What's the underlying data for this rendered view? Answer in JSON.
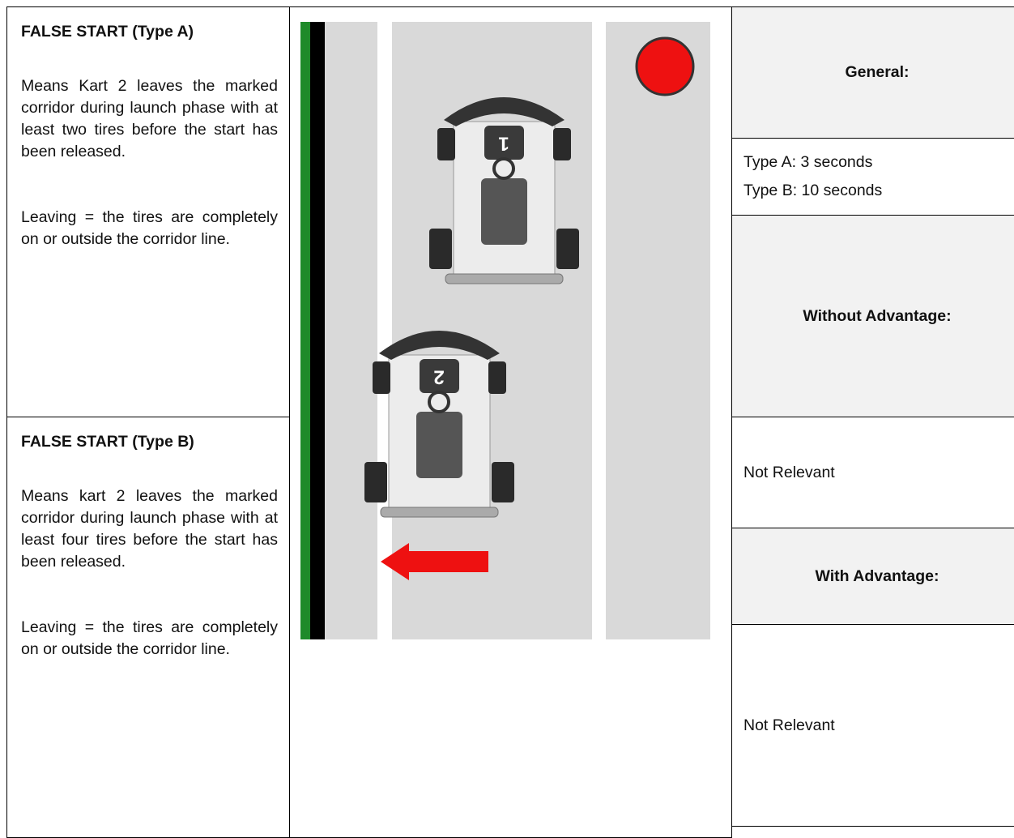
{
  "left": [
    {
      "title": "FALSE START (Type A)",
      "paragraphs": [
        "Means Kart 2 leaves the marked corridor during launch phase with at least two tires before the start has been released.",
        "Leaving = the tires are completely on or outside the corridor line."
      ]
    },
    {
      "title": "FALSE START (Type B)",
      "paragraphs": [
        "Means kart 2 leaves the marked corridor during launch phase with at least four tires before the start has been released.",
        "Leaving = the tires are completely on or outside the corridor line."
      ]
    }
  ],
  "illustration": {
    "karts": [
      "1",
      "2"
    ]
  },
  "right": {
    "general": {
      "heading": "General:",
      "lines": [
        "Type A: 3 seconds",
        "Type B: 10 seconds"
      ]
    },
    "without_advantage": {
      "heading": "Without Advantage:",
      "text": "Not Relevant"
    },
    "with_advantage": {
      "heading": "With Advantage:",
      "text": "Not Relevant"
    }
  }
}
